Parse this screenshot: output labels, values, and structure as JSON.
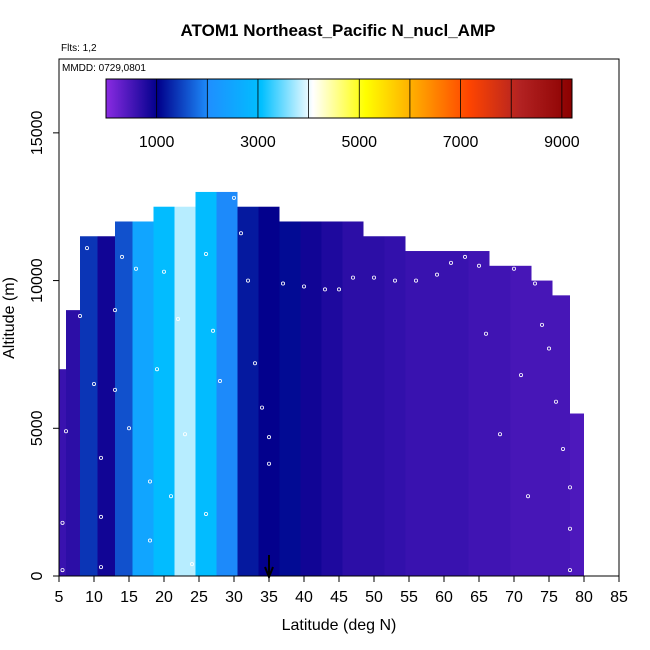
{
  "chart_data": {
    "type": "heatmap",
    "title": "ATOM1 Northeast_Pacific N_nucl_AMP",
    "annotations": [
      "Flts: 1,2",
      "MMDD: 0729,0801"
    ],
    "xlabel": "Latitude (deg N)",
    "ylabel": "Altitude (m)",
    "xlim": [
      5,
      85
    ],
    "ylim": [
      0,
      17500
    ],
    "x_ticks": [
      5,
      10,
      15,
      20,
      25,
      30,
      35,
      40,
      45,
      50,
      55,
      60,
      65,
      70,
      75,
      80,
      85
    ],
    "y_ticks": [
      0,
      5000,
      10000,
      15000
    ],
    "colorbar": {
      "range": [
        0,
        9200
      ],
      "ticks": [
        1000,
        3000,
        5000,
        7000,
        9000
      ],
      "colors": [
        "#8a2be2",
        "#00008b",
        "#1e90ff",
        "#00bfff",
        "#ffffff",
        "#ffff00",
        "#ffa500",
        "#ff4500",
        "#b22222",
        "#8b0000"
      ]
    },
    "marker": {
      "x": 35,
      "label": "arrow"
    },
    "columns": [
      {
        "x": 5,
        "top": 7000,
        "value": 600
      },
      {
        "x": 7,
        "top": 9000,
        "value": 700
      },
      {
        "x": 9,
        "top": 11500,
        "value": 1400
      },
      {
        "x": 12,
        "top": 11500,
        "value": 900
      },
      {
        "x": 14,
        "top": 12000,
        "value": 1600
      },
      {
        "x": 17,
        "top": 12000,
        "value": 2500
      },
      {
        "x": 20,
        "top": 12500,
        "value": 3000
      },
      {
        "x": 23,
        "top": 12500,
        "value": 3800
      },
      {
        "x": 26,
        "top": 13000,
        "value": 3000
      },
      {
        "x": 29,
        "top": 13000,
        "value": 2000
      },
      {
        "x": 32,
        "top": 12500,
        "value": 1200
      },
      {
        "x": 35,
        "top": 12500,
        "value": 1000
      },
      {
        "x": 38,
        "top": 12000,
        "value": 1100
      },
      {
        "x": 41,
        "top": 12000,
        "value": 900
      },
      {
        "x": 44,
        "top": 12000,
        "value": 800
      },
      {
        "x": 47,
        "top": 12000,
        "value": 700
      },
      {
        "x": 50,
        "top": 11500,
        "value": 700
      },
      {
        "x": 53,
        "top": 11500,
        "value": 650
      },
      {
        "x": 56,
        "top": 11000,
        "value": 600
      },
      {
        "x": 59,
        "top": 11000,
        "value": 600
      },
      {
        "x": 62,
        "top": 11000,
        "value": 600
      },
      {
        "x": 65,
        "top": 11000,
        "value": 550
      },
      {
        "x": 68,
        "top": 10500,
        "value": 550
      },
      {
        "x": 71,
        "top": 10500,
        "value": 500
      },
      {
        "x": 74,
        "top": 10000,
        "value": 500
      },
      {
        "x": 77,
        "top": 9500,
        "value": 500
      },
      {
        "x": 79,
        "top": 5500,
        "value": 450
      }
    ],
    "points": [
      {
        "x": 5.5,
        "y": 200
      },
      {
        "x": 5.5,
        "y": 1800
      },
      {
        "x": 6,
        "y": 4900
      },
      {
        "x": 8,
        "y": 8800
      },
      {
        "x": 9,
        "y": 11100
      },
      {
        "x": 10,
        "y": 6500
      },
      {
        "x": 11,
        "y": 4000
      },
      {
        "x": 11,
        "y": 2000
      },
      {
        "x": 11,
        "y": 300
      },
      {
        "x": 13,
        "y": 9000
      },
      {
        "x": 13,
        "y": 6300
      },
      {
        "x": 14,
        "y": 10800
      },
      {
        "x": 15,
        "y": 5000
      },
      {
        "x": 16,
        "y": 10400
      },
      {
        "x": 18,
        "y": 3200
      },
      {
        "x": 18,
        "y": 1200
      },
      {
        "x": 19,
        "y": 7000
      },
      {
        "x": 20,
        "y": 10300
      },
      {
        "x": 21,
        "y": 2700
      },
      {
        "x": 22,
        "y": 8700
      },
      {
        "x": 23,
        "y": 4800
      },
      {
        "x": 24,
        "y": 400
      },
      {
        "x": 26,
        "y": 10900
      },
      {
        "x": 26,
        "y": 2100
      },
      {
        "x": 27,
        "y": 8300
      },
      {
        "x": 28,
        "y": 6600
      },
      {
        "x": 30,
        "y": 12800
      },
      {
        "x": 31,
        "y": 11600
      },
      {
        "x": 32,
        "y": 10000
      },
      {
        "x": 33,
        "y": 7200
      },
      {
        "x": 34,
        "y": 5700
      },
      {
        "x": 35,
        "y": 4700
      },
      {
        "x": 35,
        "y": 3800
      },
      {
        "x": 37,
        "y": 9900
      },
      {
        "x": 40,
        "y": 9800
      },
      {
        "x": 43,
        "y": 9700
      },
      {
        "x": 45,
        "y": 9700
      },
      {
        "x": 47,
        "y": 10100
      },
      {
        "x": 50,
        "y": 10100
      },
      {
        "x": 53,
        "y": 10000
      },
      {
        "x": 56,
        "y": 10000
      },
      {
        "x": 59,
        "y": 10200
      },
      {
        "x": 61,
        "y": 10600
      },
      {
        "x": 63,
        "y": 10800
      },
      {
        "x": 65,
        "y": 10500
      },
      {
        "x": 66,
        "y": 8200
      },
      {
        "x": 68,
        "y": 4800
      },
      {
        "x": 70,
        "y": 10400
      },
      {
        "x": 71,
        "y": 6800
      },
      {
        "x": 72,
        "y": 2700
      },
      {
        "x": 73,
        "y": 9900
      },
      {
        "x": 74,
        "y": 8500
      },
      {
        "x": 75,
        "y": 7700
      },
      {
        "x": 76,
        "y": 5900
      },
      {
        "x": 77,
        "y": 4300
      },
      {
        "x": 78,
        "y": 3000
      },
      {
        "x": 78,
        "y": 1600
      },
      {
        "x": 78,
        "y": 200
      }
    ]
  }
}
